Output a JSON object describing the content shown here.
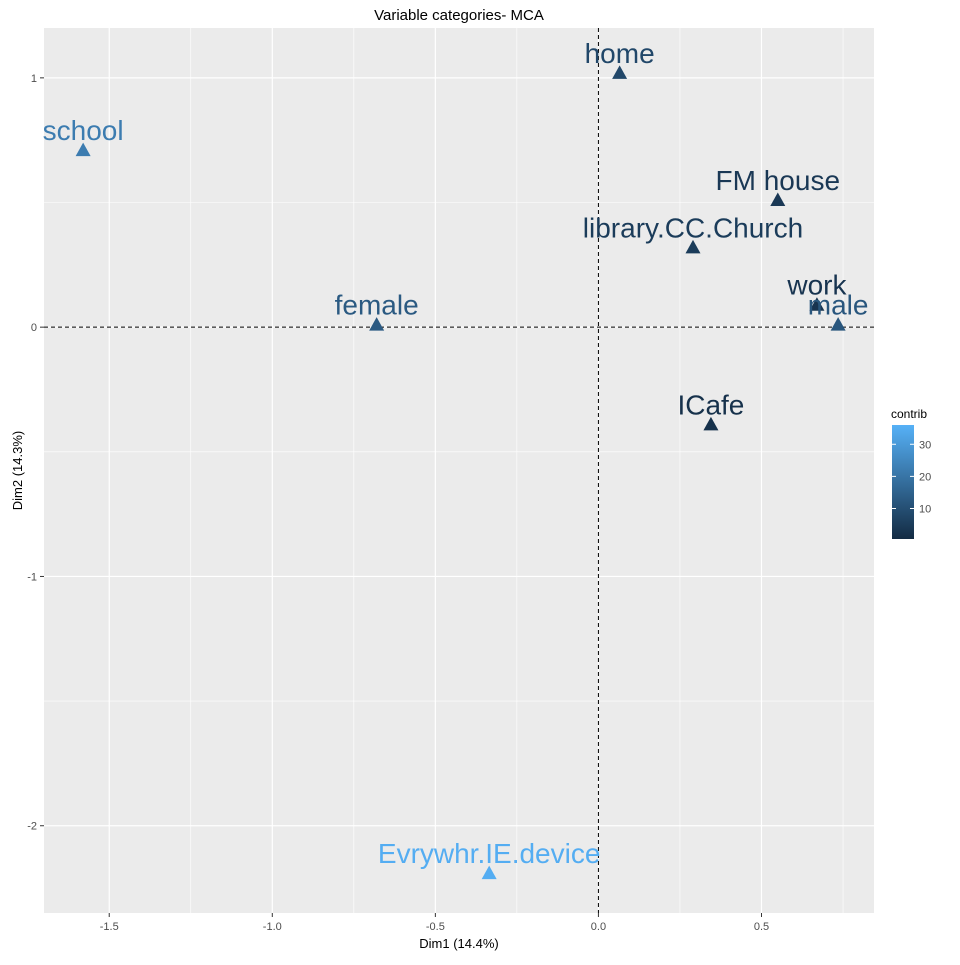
{
  "chart_data": {
    "type": "scatter",
    "title": "Variable categories- MCA",
    "xlabel": "Dim1 (14.4%)",
    "ylabel": "Dim2 (14.3%)",
    "xlim": [
      -1.7,
      0.845
    ],
    "ylim": [
      -2.35,
      1.2
    ],
    "xticks": [
      -1.5,
      -1.0,
      -0.5,
      0.0,
      0.5
    ],
    "xtick_labels": [
      "-1.5",
      "-1.0",
      "-0.5",
      "0.0",
      "0.5"
    ],
    "yticks": [
      -2,
      -1,
      0,
      1
    ],
    "ytick_labels": [
      "-2",
      "-1",
      "0",
      "1"
    ],
    "grid": true,
    "reference_lines": {
      "x": 0,
      "y": 0,
      "style": "dashed"
    },
    "marker": "triangle",
    "points": [
      {
        "label": "home",
        "x": 0.065,
        "y": 1.02,
        "contrib": 8
      },
      {
        "label": "school",
        "x": -1.58,
        "y": 0.71,
        "contrib": 22
      },
      {
        "label": "FM house",
        "x": 0.55,
        "y": 0.51,
        "contrib": 4
      },
      {
        "label": "library.CC.Church",
        "x": 0.29,
        "y": 0.32,
        "contrib": 5
      },
      {
        "label": "female",
        "x": -0.68,
        "y": 0.01,
        "contrib": 13
      },
      {
        "label": "work",
        "x": 0.67,
        "y": 0.09,
        "contrib": 3
      },
      {
        "label": "male",
        "x": 0.735,
        "y": 0.01,
        "contrib": 12
      },
      {
        "label": "ICafe",
        "x": 0.345,
        "y": -0.39,
        "contrib": 2
      },
      {
        "label": "Evrywhr.IE.device",
        "x": -0.335,
        "y": -2.19,
        "contrib": 35
      }
    ],
    "legend": {
      "title": "contrib",
      "placement": "right",
      "range": [
        0.5,
        36
      ],
      "ticks": [
        10,
        20,
        30
      ],
      "tick_labels": [
        "10",
        "20",
        "30"
      ],
      "colors": {
        "low": "#132b43",
        "high": "#56b1f7"
      }
    },
    "colors": {
      "panel": "#ebebeb",
      "grid": "#ffffff"
    }
  }
}
